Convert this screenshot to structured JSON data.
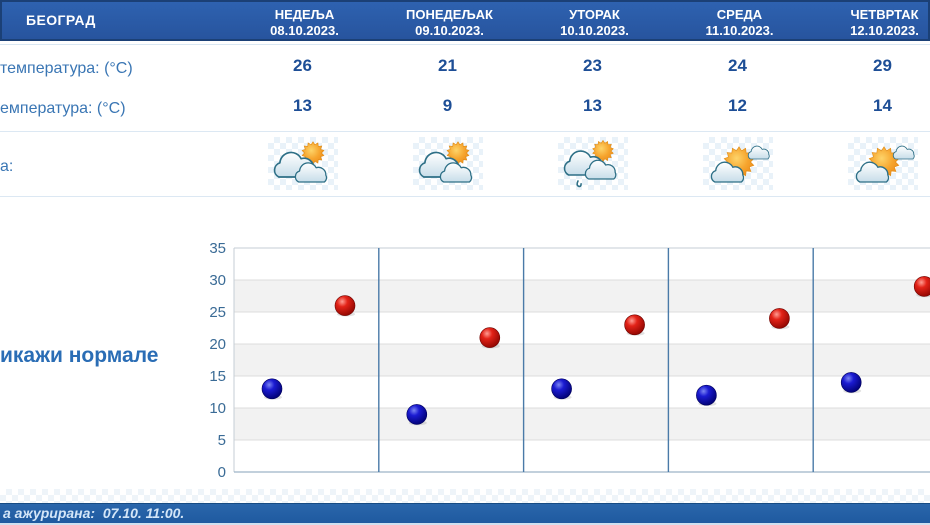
{
  "header": {
    "city": "БЕОГРАД",
    "days": [
      {
        "name": "НЕДЕЉА",
        "date": "08.10.2023."
      },
      {
        "name": "ПОНЕДЕЉАК",
        "date": "09.10.2023."
      },
      {
        "name": "УТОРАК",
        "date": "10.10.2023."
      },
      {
        "name": "СРЕДА",
        "date": "11.10.2023."
      },
      {
        "name": "ЧЕТВРТАК",
        "date": "12.10.2023."
      }
    ],
    "bar_color": "#2a5caa"
  },
  "rows": {
    "max_temp": {
      "label": "температура: (°C)",
      "values": [
        26,
        21,
        23,
        24,
        29
      ]
    },
    "min_temp": {
      "label": "емпература: (°C)",
      "values": [
        13,
        9,
        13,
        12,
        14
      ]
    },
    "phenomena": {
      "label": "а:",
      "icons": [
        "sun-behind-clouds-icon",
        "sun-behind-clouds-icon",
        "sun-clouds-rain-icon",
        "sun-with-clouds-icon",
        "sun-with-clouds-icon"
      ]
    }
  },
  "normals_link": {
    "label": "икажи нормале"
  },
  "chart_data": {
    "type": "scatter",
    "categories": [
      "08.10.2023.",
      "09.10.2023.",
      "10.10.2023.",
      "11.10.2023.",
      "12.10.2023."
    ],
    "series": [
      {
        "name": "max_temp",
        "color": "#d41414",
        "values": [
          26,
          21,
          23,
          24,
          29
        ]
      },
      {
        "name": "min_temp",
        "color": "#1515cc",
        "values": [
          13,
          9,
          13,
          12,
          14
        ]
      }
    ],
    "title": "",
    "xlabel": "",
    "ylabel": "",
    "ylim": [
      0,
      35
    ],
    "yticks": [
      0,
      5,
      10,
      15,
      20,
      25,
      30,
      35
    ],
    "grid": true,
    "band_color": "#f2f2f2",
    "gridline_color": "#dcdcdc",
    "divider_color": "#4a7aa8",
    "tick_color": "#3a6b96"
  },
  "footer": {
    "updated_text": "а ажурирана:  07.10. 11:00."
  }
}
